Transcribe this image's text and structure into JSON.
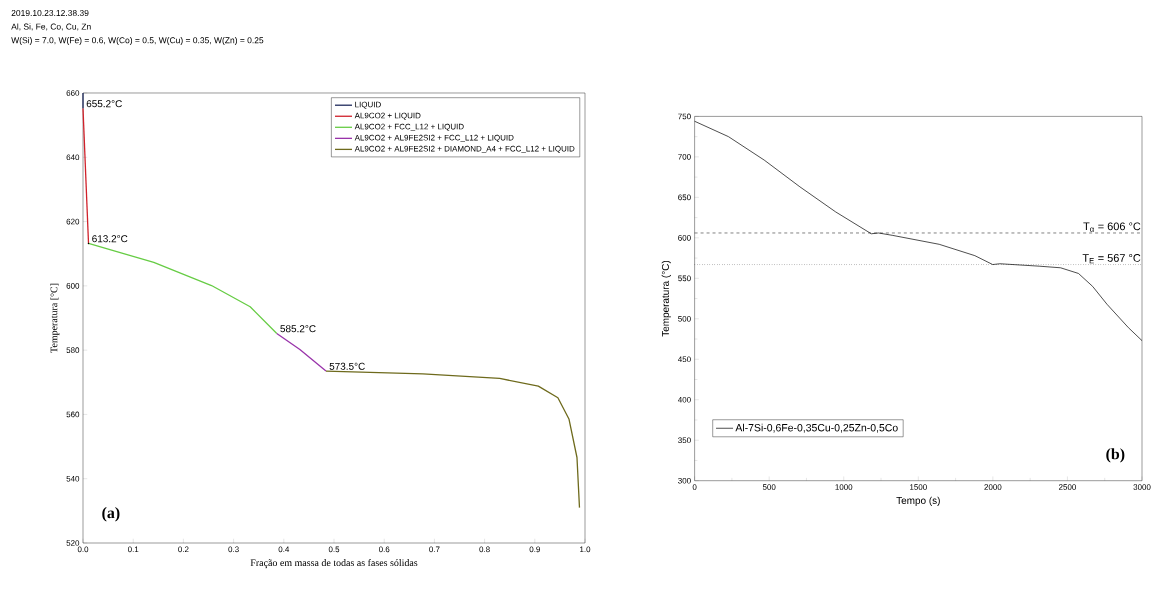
{
  "chart_data": [
    {
      "type": "line",
      "title": "2019.10.23.12.38.39",
      "subtitle": "Al, Si, Fe, Co, Cu, Zn",
      "xlabel": "Fração em massa de todas as fases sólidas",
      "ylabel": "Temperatura [°C]",
      "xlim": [
        0,
        1
      ],
      "ylim": [
        520,
        660
      ],
      "xticks": [
        {
          "value": 0,
          "label": "0.0"
        },
        0.1,
        0.2,
        0.3,
        0.4,
        0.5,
        0.6,
        0.7,
        0.8,
        0.9,
        {
          "value": 1,
          "label": "1.0"
        }
      ],
      "yticks": [
        520,
        540,
        560,
        580,
        600,
        620,
        640,
        660
      ],
      "grid": false,
      "legend": "top right",
      "marker": "none",
      "line_style": "solid",
      "series": [
        {
          "name": "LIQUID",
          "color": "#1f2a5c",
          "x": [
            0,
            0
          ],
          "values": [
            660,
            655.2
          ]
        },
        {
          "name": "AL9CO2 + LIQUID",
          "color": "#d0202a",
          "x": [
            0,
            0.011
          ],
          "values": [
            655.2,
            613.2
          ]
        },
        {
          "name": "AL9CO2 + FCC_L12 + LIQUID",
          "color": "#66cc44",
          "x": [
            0.011,
            0.141,
            0.256,
            0.333,
            0.386
          ],
          "values": [
            613.2,
            607.3,
            600.1,
            593.5,
            585.2
          ]
        },
        {
          "name": "AL9CO2 + AL9FE2SI2 + FCC_L12 + LIQUID",
          "color": "#9933aa",
          "x": [
            0.386,
            0.432,
            0.484
          ],
          "values": [
            585.2,
            580.2,
            573.5
          ]
        },
        {
          "name": "AL9CO2 + AL9FE2SI2 + DIAMOND_A4 + FCC_L12 + LIQUID",
          "color": "#6e6a1c",
          "x": [
            0.484,
            0.677,
            0.83,
            0.907,
            0.946,
            0.968,
            0.984,
            0.989
          ],
          "values": [
            573.5,
            572.6,
            571.2,
            568.8,
            565.2,
            558.6,
            546.6,
            531
          ]
        }
      ],
      "annotations": [
        "W(Si) = 7.0, W(Fe) = 0.6, W(Co) = 0.5, W(Cu) = 0.35, W(Zn) = 0.25",
        {
          "text": "655.2°C",
          "x": 0,
          "y": 655.2
        },
        {
          "text": "613.2°C",
          "x": 0.011,
          "y": 613.2
        },
        {
          "text": "585.2°C",
          "x": 0.386,
          "y": 585.2
        },
        {
          "text": "573.5°C",
          "x": 0.484,
          "y": 573.5
        },
        "(a)"
      ]
    },
    {
      "type": "line",
      "xlabel": "Tempo (s)",
      "ylabel": "Temperatura (°C)",
      "xlim": [
        0,
        3000
      ],
      "ylim": [
        300,
        750
      ],
      "xticks": [
        0,
        500,
        1000,
        1500,
        2000,
        2500,
        3000
      ],
      "yticks": [
        300,
        350,
        400,
        450,
        500,
        550,
        600,
        650,
        700,
        750
      ],
      "grid": false,
      "legend": "bottom left",
      "marker": "none",
      "line_style": "solid",
      "series": [
        {
          "name": "Al-7Si-0,6Fe-0,35Cu-0,25Zn-0,5Co",
          "color": "#000000",
          "x": [
            0,
            227,
            467,
            706,
            946,
            1185,
            1233,
            1329,
            1640,
            1879,
            1999,
            2047,
            2310,
            2454,
            2574,
            2669,
            2765,
            2909,
            3000
          ],
          "values": [
            744,
            725,
            696,
            663,
            632,
            605,
            606,
            603,
            592,
            578,
            567,
            568,
            565,
            563,
            556,
            540,
            518,
            489,
            473
          ]
        }
      ],
      "ref_lines": [
        {
          "axis": "y",
          "value": 606,
          "label": "T$_{α}$ = 606 °C",
          "line_style": "dashed"
        },
        {
          "axis": "y",
          "value": 567,
          "label": "T$_{E}$ = 567 °C",
          "line_style": "dotted"
        }
      ],
      "annotations": [
        "(b)"
      ]
    }
  ]
}
